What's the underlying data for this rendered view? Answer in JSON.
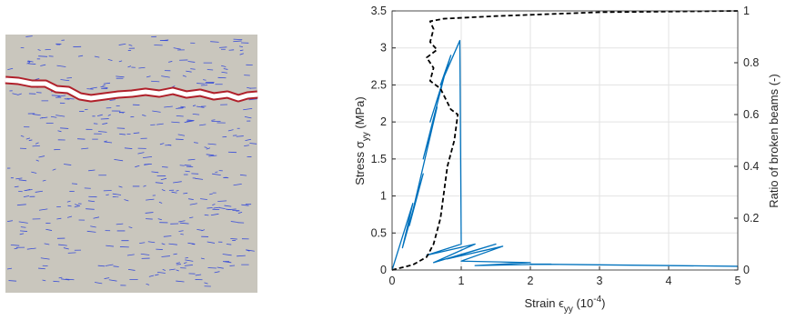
{
  "chart_data": {
    "type": "line",
    "x_label": [
      "Strain ϵ",
      "yy",
      " (10",
      "-4",
      ")"
    ],
    "y_label": [
      "Stress σ",
      "yy",
      " (MPa)"
    ],
    "y2_label": "Ratio of broken beams (-)",
    "xlim": [
      0,
      5
    ],
    "xticks": [
      0,
      1,
      2,
      3,
      4,
      5
    ],
    "ylim": [
      0,
      3.5
    ],
    "yticks": [
      0,
      0.5,
      1,
      1.5,
      2,
      2.5,
      3,
      3.5
    ],
    "y2lim": [
      0,
      1
    ],
    "y2ticks": [
      0,
      0.2,
      0.4,
      0.6,
      0.8,
      1
    ],
    "grid": true,
    "series": [
      {
        "color": "#0072bd",
        "dashed": false,
        "x": [
          0,
          0.3,
          0.15,
          0.45,
          0.25,
          0.55,
          0.35,
          0.65,
          0.45,
          0.75,
          0.55,
          0.85,
          0.7,
          0.98,
          1.0,
          0.5,
          1.2,
          0.6,
          1.5,
          0.8,
          1.6,
          1.0,
          2.0,
          1.2,
          2.3,
          2.0,
          5
        ],
        "values": [
          0,
          0.9,
          0.3,
          1.3,
          0.6,
          1.8,
          1.0,
          2.2,
          1.5,
          2.6,
          2.0,
          2.9,
          2.5,
          3.1,
          0.35,
          0.2,
          0.35,
          0.1,
          0.35,
          0.15,
          0.32,
          0.12,
          0.1,
          0.06,
          0.08,
          0.08,
          0.05
        ]
      },
      {
        "color": "#000000",
        "dashed": true,
        "axis": "y2",
        "x": [
          0,
          0.3,
          0.5,
          0.6,
          0.7,
          0.75,
          0.8,
          0.9,
          0.95,
          0.85,
          0.7,
          0.55,
          0.6,
          0.5,
          0.65,
          0.55,
          0.6,
          0.55,
          0.75,
          1.5,
          3,
          5
        ],
        "values": [
          0,
          0.02,
          0.05,
          0.1,
          0.2,
          0.3,
          0.4,
          0.5,
          0.6,
          0.62,
          0.7,
          0.73,
          0.78,
          0.82,
          0.85,
          0.88,
          0.93,
          0.96,
          0.97,
          0.98,
          0.995,
          1
        ]
      }
    ]
  }
}
